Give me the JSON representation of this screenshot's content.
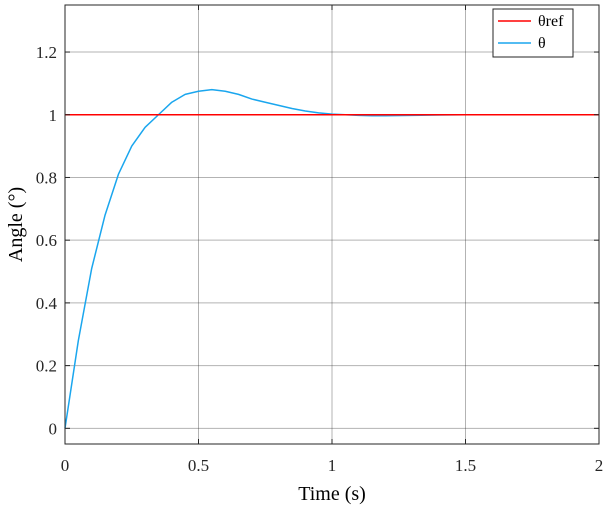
{
  "chart_data": {
    "type": "line",
    "title": "",
    "xlabel": "Time (s)",
    "ylabel": "Angle (°)",
    "xlim": [
      0,
      2
    ],
    "ylim": [
      -0.05,
      1.35
    ],
    "x_ticks": [
      0,
      0.5,
      1,
      1.5,
      2
    ],
    "x_tick_labels": [
      "0",
      "0.5",
      "1",
      "1.5",
      "2"
    ],
    "y_ticks": [
      0,
      0.2,
      0.4,
      0.6,
      0.8,
      1,
      1.2
    ],
    "y_tick_labels": [
      "0",
      "0.2",
      "0.4",
      "0.6",
      "0.8",
      "1",
      "1.2"
    ],
    "grid": true,
    "legend_position": "top-right",
    "series": [
      {
        "name": "θref",
        "color": "#ff0000",
        "x": [
          0,
          2
        ],
        "y": [
          1,
          1
        ]
      },
      {
        "name": "θ",
        "color": "#1aa6ee",
        "x": [
          0,
          0.05,
          0.1,
          0.15,
          0.2,
          0.25,
          0.3,
          0.35,
          0.4,
          0.45,
          0.5,
          0.55,
          0.6,
          0.65,
          0.7,
          0.75,
          0.8,
          0.85,
          0.9,
          0.95,
          1.0,
          1.05,
          1.1,
          1.15,
          1.2,
          1.3,
          1.4,
          1.5,
          1.6,
          1.7,
          1.8,
          1.9,
          2.0
        ],
        "y": [
          0,
          0.28,
          0.51,
          0.68,
          0.81,
          0.9,
          0.96,
          1.0,
          1.04,
          1.065,
          1.075,
          1.08,
          1.075,
          1.065,
          1.05,
          1.04,
          1.03,
          1.02,
          1.012,
          1.006,
          1.002,
          1.0,
          0.998,
          0.997,
          0.997,
          0.998,
          0.999,
          1.0,
          1.0,
          1.0,
          1.0,
          1.0,
          1.0
        ]
      }
    ]
  }
}
